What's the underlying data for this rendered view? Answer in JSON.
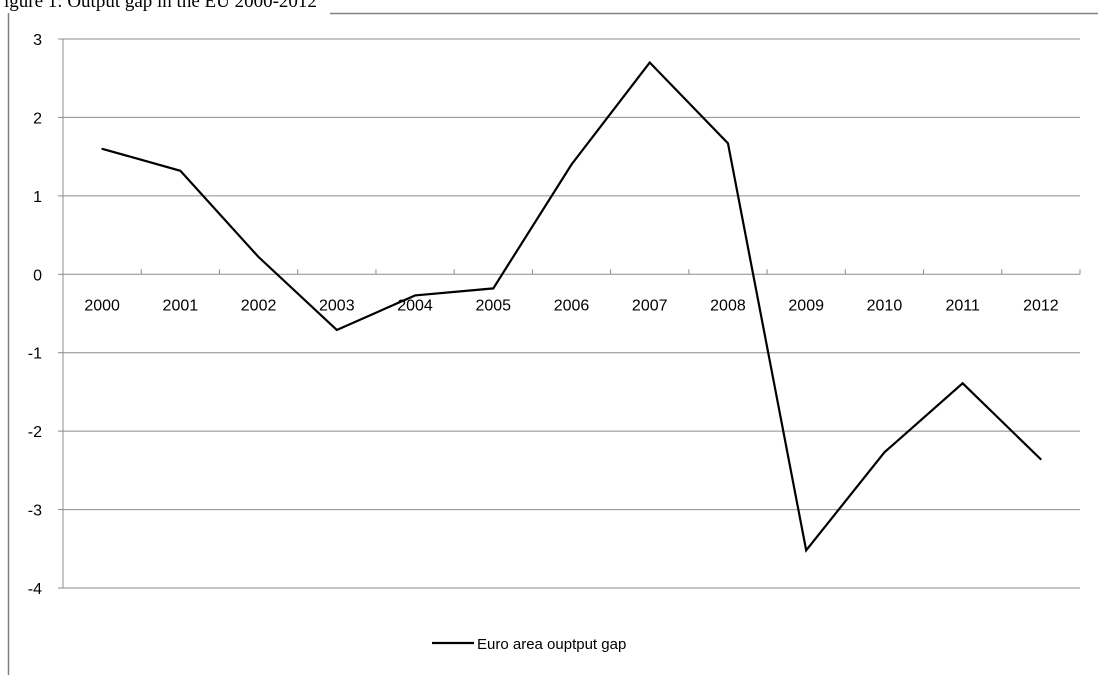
{
  "caption": "igure 1: Output gap in the EU 2000-2012",
  "chart_data": {
    "type": "line",
    "categories": [
      "2000",
      "2001",
      "2002",
      "2003",
      "2004",
      "2005",
      "2006",
      "2007",
      "2008",
      "2009",
      "2010",
      "2011",
      "2012"
    ],
    "series": [
      {
        "name": "Euro area ouptput gap",
        "color": "#000000",
        "values": [
          1.6,
          1.32,
          0.22,
          -0.71,
          -0.27,
          -0.18,
          1.4,
          2.7,
          1.67,
          -3.52,
          -2.27,
          -1.39,
          -2.36
        ]
      }
    ],
    "yticks": [
      "3",
      "2",
      "1",
      "0",
      "-1",
      "-2",
      "-3",
      "-4"
    ],
    "ylim": [
      -4,
      3
    ],
    "grid": true,
    "legend_position": "bottom-center"
  }
}
